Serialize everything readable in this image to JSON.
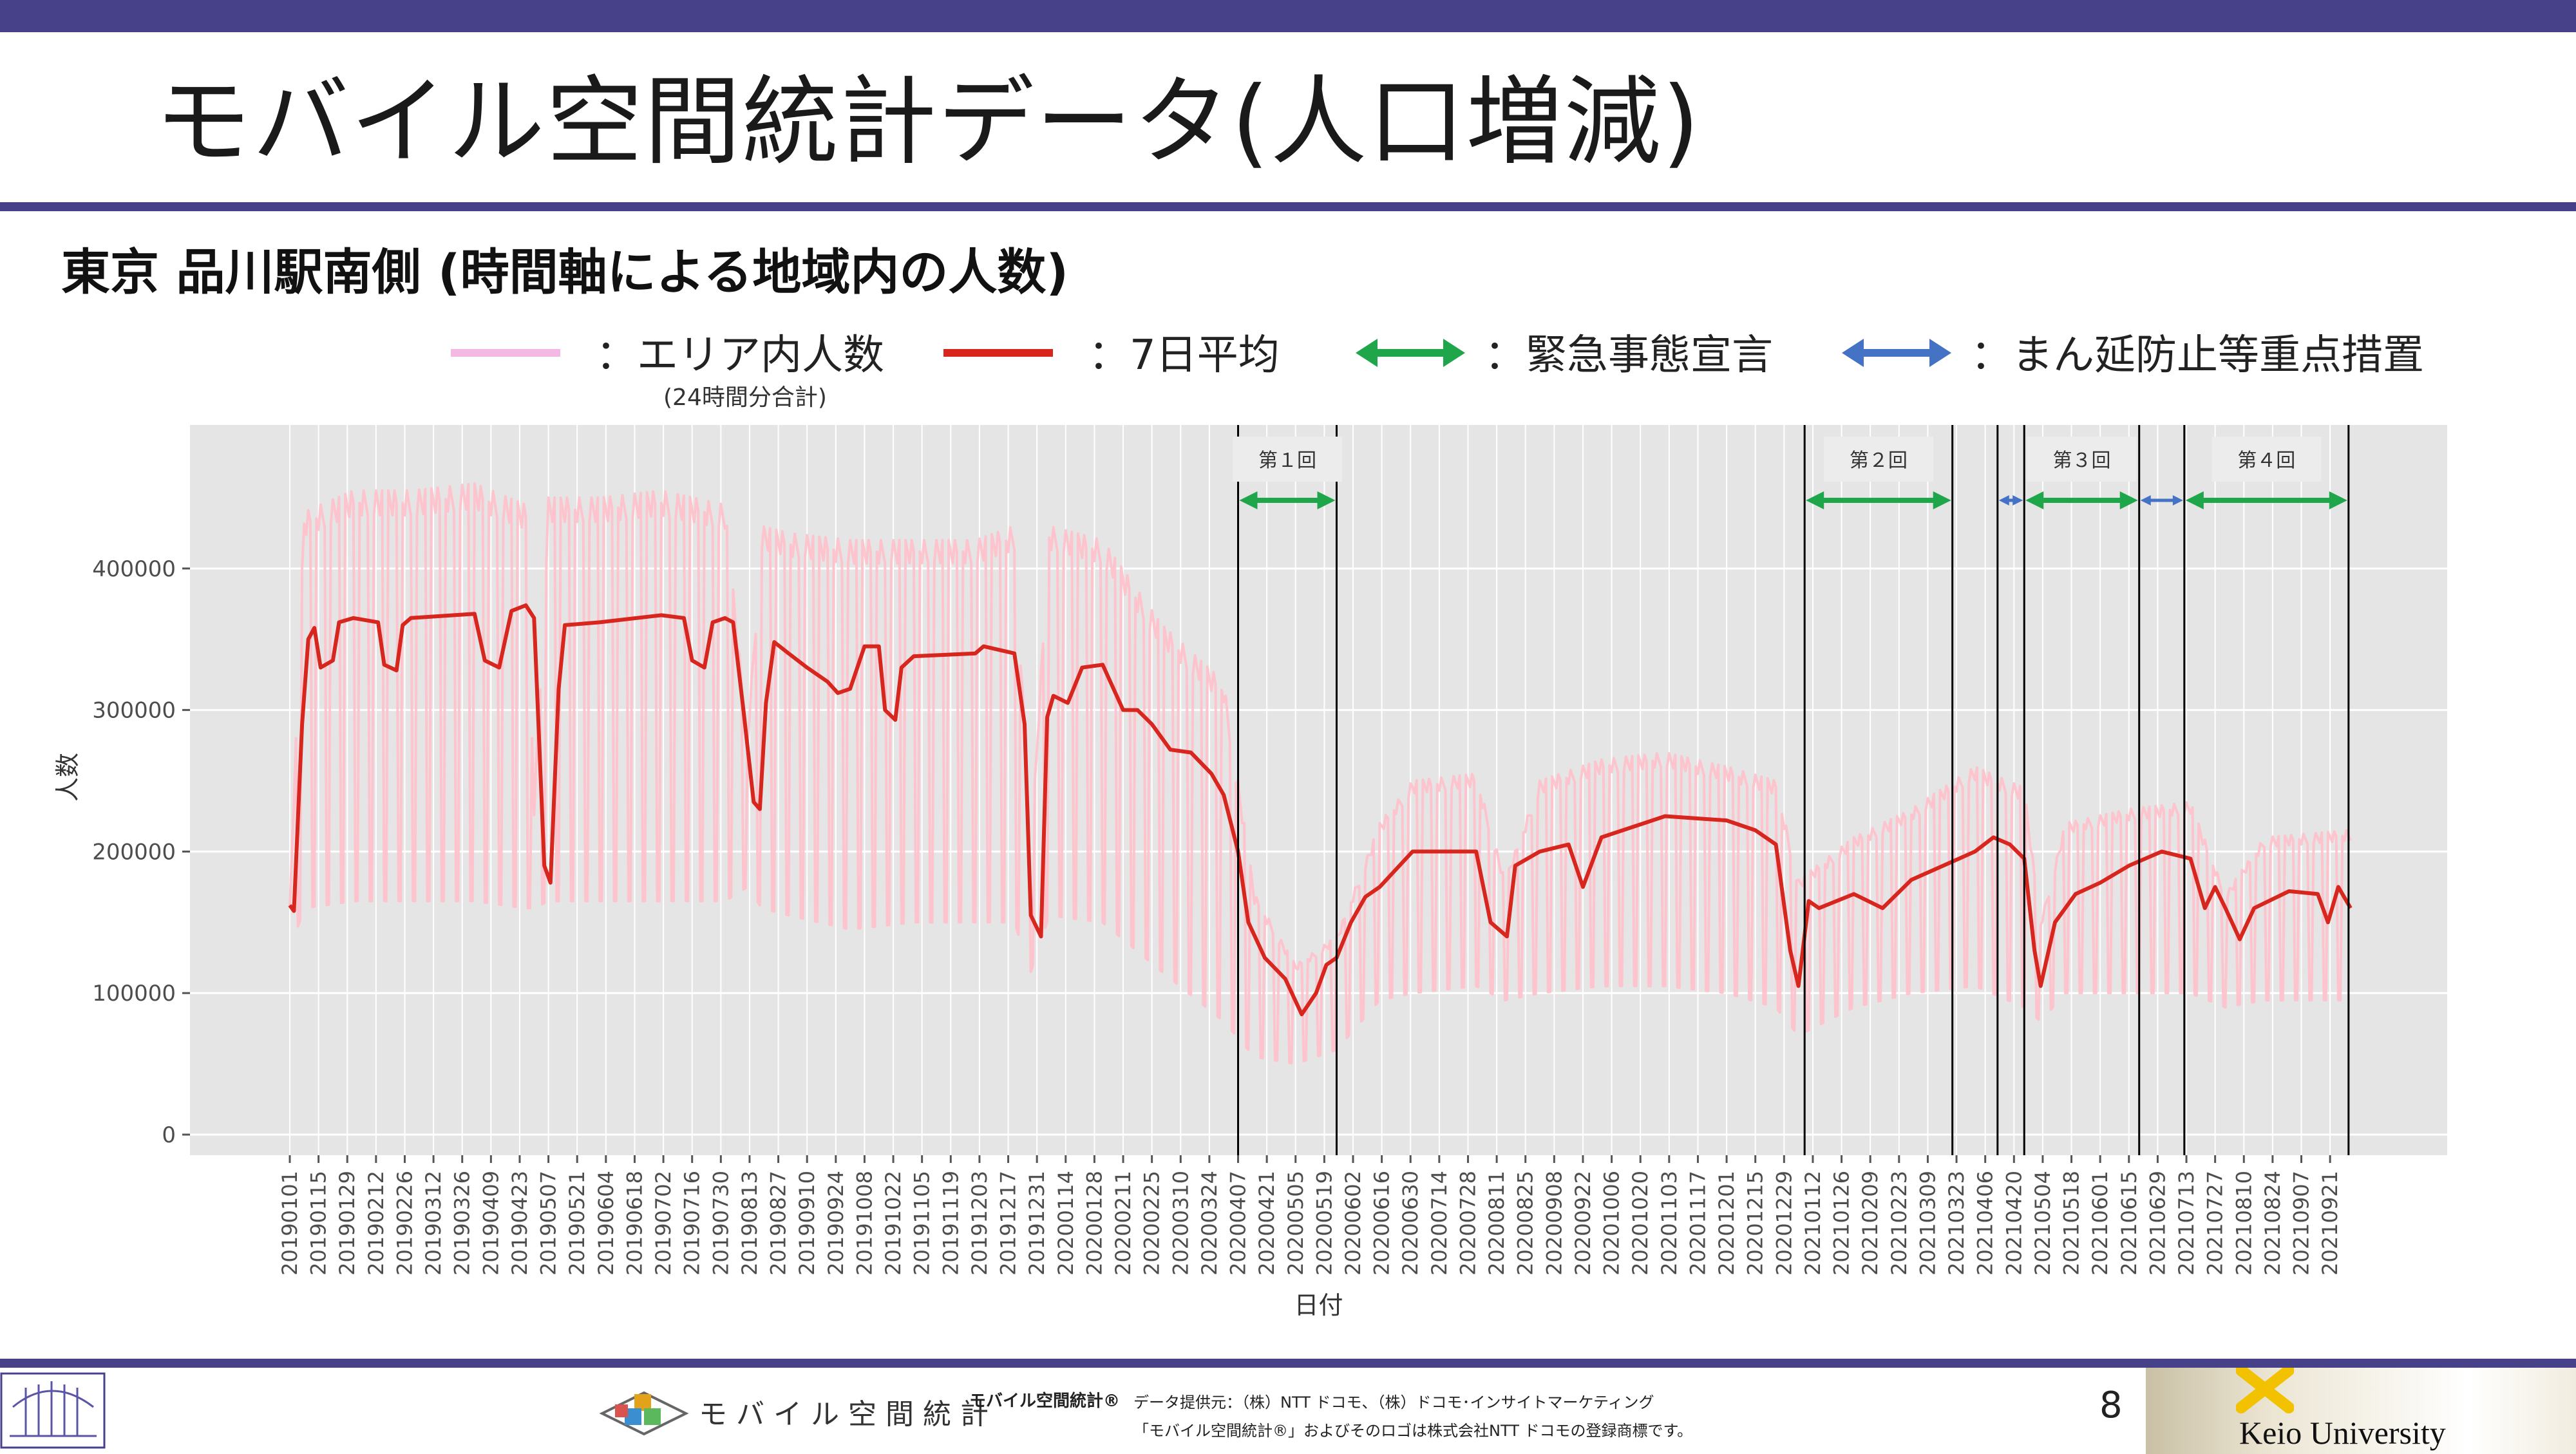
{
  "slide": {
    "title": "モバイル空間統計データ(人口増減)",
    "subtitle": "東京 品川駅南側 (時間軸による地域内の人数)",
    "page_number": "8"
  },
  "legend": {
    "items": [
      {
        "label": "：エリア内人数",
        "color": "#f4b8e4"
      },
      {
        "label": "：7日平均",
        "color": "#d7261e"
      },
      {
        "label": "：緊急事態宣言",
        "color": "#1fa64a"
      },
      {
        "label": "：まん延防止等重点措置",
        "color": "#4472c4"
      }
    ],
    "note": "(24時間分合計)"
  },
  "footer": {
    "brand_left_text": "モバイル空間統計",
    "brand_small": "モバイル空間統計®",
    "provider": "データ提供元：（株）NTT ドコモ、（株）ドコモ･インサイトマーケティング",
    "trademark": "「モバイル空間統計®」およびそのロゴは株式会社NTT ドコモの登録商標です。",
    "university": "Keio University"
  },
  "colors": {
    "band": "#464189",
    "panel": "#e5e5e5",
    "daily": "#ffc0cb",
    "avg": "#d7261e",
    "emergency": "#1fa64a",
    "priority": "#4472c4"
  },
  "chart_data": {
    "type": "line",
    "xlabel": "日付",
    "ylabel": "人数",
    "ylim": [
      0,
      480000
    ],
    "yticks": [
      0,
      100000,
      200000,
      300000,
      400000
    ],
    "ytick_labels": [
      "0",
      "100000",
      "200000",
      "300000",
      "400000"
    ],
    "x_start": "20190101",
    "x_end": "20211001",
    "xtick_labels": [
      "20190101",
      "20190115",
      "20190129",
      "20190212",
      "20190226",
      "20190312",
      "20190326",
      "20190409",
      "20190423",
      "20190507",
      "20190521",
      "20190604",
      "20190618",
      "20190702",
      "20190716",
      "20190730",
      "20190813",
      "20190827",
      "20190910",
      "20190924",
      "20191008",
      "20191022",
      "20191105",
      "20191119",
      "20191203",
      "20191217",
      "20191231",
      "20200114",
      "20200128",
      "20200211",
      "20200225",
      "20200310",
      "20200324",
      "20200407",
      "20200421",
      "20200505",
      "20200519",
      "20200602",
      "20200616",
      "20200630",
      "20200714",
      "20200728",
      "20200811",
      "20200825",
      "20200908",
      "20200922",
      "20201006",
      "20201020",
      "20201103",
      "20201117",
      "20201201",
      "20201215",
      "20201229",
      "20210112",
      "20210126",
      "20210209",
      "20210223",
      "20210309",
      "20210323",
      "20210406",
      "20210420",
      "20210504",
      "20210518",
      "20210601",
      "20210615",
      "20210629",
      "20210713",
      "20210727",
      "20210810",
      "20210824",
      "20210907",
      "20210921"
    ],
    "grid": true,
    "legend_position": "top",
    "series": [
      {
        "name": "エリア内人数",
        "style": "daily-range",
        "points": [
          [
            "20190101",
            130000,
            160000
          ],
          [
            "20190108",
            160000,
            440000
          ],
          [
            "20190201",
            165000,
            455000
          ],
          [
            "20190301",
            165000,
            455000
          ],
          [
            "20190401",
            165000,
            460000
          ],
          [
            "20190426",
            160000,
            445000
          ],
          [
            "20190430",
            160000,
            230000
          ],
          [
            "20190507",
            165000,
            450000
          ],
          [
            "20190601",
            165000,
            450000
          ],
          [
            "20190701",
            165000,
            455000
          ],
          [
            "20190801",
            165000,
            445000
          ],
          [
            "20190812",
            175000,
            280000
          ],
          [
            "20190819",
            160000,
            430000
          ],
          [
            "20190901",
            155000,
            425000
          ],
          [
            "20191001",
            145000,
            420000
          ],
          [
            "20191101",
            150000,
            420000
          ],
          [
            "20191201",
            150000,
            420000
          ],
          [
            "20191220",
            150000,
            430000
          ],
          [
            "20191228",
            115000,
            200000
          ],
          [
            "20200106",
            155000,
            430000
          ],
          [
            "20200201",
            150000,
            420000
          ],
          [
            "20200301",
            115000,
            360000
          ],
          [
            "20200331",
            80000,
            320000
          ],
          [
            "20200415",
            55000,
            170000
          ],
          [
            "20200505",
            50000,
            120000
          ],
          [
            "20200525",
            60000,
            140000
          ],
          [
            "20200615",
            95000,
            220000
          ],
          [
            "20200701",
            100000,
            250000
          ],
          [
            "20200801",
            105000,
            255000
          ],
          [
            "20200815",
            95000,
            180000
          ],
          [
            "20200901",
            100000,
            250000
          ],
          [
            "20201001",
            105000,
            265000
          ],
          [
            "20201101",
            105000,
            270000
          ],
          [
            "20201201",
            100000,
            260000
          ],
          [
            "20201225",
            90000,
            250000
          ],
          [
            "20210105",
            70000,
            180000
          ],
          [
            "20210201",
            90000,
            210000
          ],
          [
            "20210301",
            100000,
            230000
          ],
          [
            "20210401",
            105000,
            260000
          ],
          [
            "20210425",
            90000,
            245000
          ],
          [
            "20210503",
            80000,
            150000
          ],
          [
            "20210515",
            100000,
            220000
          ],
          [
            "20210615",
            100000,
            230000
          ],
          [
            "20210715",
            100000,
            235000
          ],
          [
            "20210801",
            90000,
            170000
          ],
          [
            "20210820",
            95000,
            210000
          ],
          [
            "20210930",
            95000,
            215000
          ]
        ]
      },
      {
        "name": "7日平均",
        "style": "line",
        "points": [
          [
            "20190101",
            162000
          ],
          [
            "20190103",
            158000
          ],
          [
            "20190107",
            290000
          ],
          [
            "20190110",
            350000
          ],
          [
            "20190113",
            358000
          ],
          [
            "20190116",
            330000
          ],
          [
            "20190122",
            335000
          ],
          [
            "20190125",
            362000
          ],
          [
            "20190201",
            365000
          ],
          [
            "20190213",
            362000
          ],
          [
            "20190216",
            332000
          ],
          [
            "20190222",
            328000
          ],
          [
            "20190225",
            360000
          ],
          [
            "20190301",
            365000
          ],
          [
            "20190401",
            368000
          ],
          [
            "20190406",
            335000
          ],
          [
            "20190413",
            330000
          ],
          [
            "20190419",
            370000
          ],
          [
            "20190426",
            374000
          ],
          [
            "20190430",
            365000
          ],
          [
            "20190505",
            190000
          ],
          [
            "20190508",
            178000
          ],
          [
            "20190512",
            315000
          ],
          [
            "20190515",
            360000
          ],
          [
            "20190601",
            362000
          ],
          [
            "20190701",
            367000
          ],
          [
            "20190712",
            365000
          ],
          [
            "20190716",
            335000
          ],
          [
            "20190722",
            330000
          ],
          [
            "20190726",
            362000
          ],
          [
            "20190801",
            365000
          ],
          [
            "20190805",
            362000
          ],
          [
            "20190810",
            300000
          ],
          [
            "20190815",
            235000
          ],
          [
            "20190818",
            230000
          ],
          [
            "20190821",
            305000
          ],
          [
            "20190825",
            348000
          ],
          [
            "20190901",
            340000
          ],
          [
            "20190910",
            330000
          ],
          [
            "20190920",
            320000
          ],
          [
            "20190925",
            312000
          ],
          [
            "20191001",
            315000
          ],
          [
            "20191008",
            345000
          ],
          [
            "20191015",
            345000
          ],
          [
            "20191018",
            300000
          ],
          [
            "20191023",
            293000
          ],
          [
            "20191026",
            330000
          ],
          [
            "20191101",
            338000
          ],
          [
            "20191201",
            340000
          ],
          [
            "20191205",
            345000
          ],
          [
            "20191220",
            340000
          ],
          [
            "20191225",
            290000
          ],
          [
            "20191228",
            155000
          ],
          [
            "20200102",
            140000
          ],
          [
            "20200105",
            295000
          ],
          [
            "20200108",
            310000
          ],
          [
            "20200115",
            305000
          ],
          [
            "20200122",
            330000
          ],
          [
            "20200201",
            332000
          ],
          [
            "20200211",
            300000
          ],
          [
            "20200218",
            300000
          ],
          [
            "20200225",
            290000
          ],
          [
            "20200305",
            272000
          ],
          [
            "20200315",
            270000
          ],
          [
            "20200325",
            255000
          ],
          [
            "20200331",
            240000
          ],
          [
            "20200407",
            200000
          ],
          [
            "20200412",
            150000
          ],
          [
            "20200420",
            125000
          ],
          [
            "20200430",
            110000
          ],
          [
            "20200508",
            85000
          ],
          [
            "20200515",
            100000
          ],
          [
            "20200520",
            120000
          ],
          [
            "20200525",
            125000
          ],
          [
            "20200601",
            150000
          ],
          [
            "20200608",
            168000
          ],
          [
            "20200615",
            175000
          ],
          [
            "20200701",
            200000
          ],
          [
            "20200801",
            200000
          ],
          [
            "20200808",
            150000
          ],
          [
            "20200816",
            140000
          ],
          [
            "20200820",
            190000
          ],
          [
            "20200901",
            200000
          ],
          [
            "20200915",
            205000
          ],
          [
            "20200922",
            175000
          ],
          [
            "20201001",
            210000
          ],
          [
            "20201101",
            225000
          ],
          [
            "20201201",
            222000
          ],
          [
            "20201215",
            215000
          ],
          [
            "20201225",
            205000
          ],
          [
            "20210101",
            130000
          ],
          [
            "20210105",
            105000
          ],
          [
            "20210110",
            165000
          ],
          [
            "20210115",
            160000
          ],
          [
            "20210201",
            170000
          ],
          [
            "20210215",
            160000
          ],
          [
            "20210301",
            180000
          ],
          [
            "20210401",
            200000
          ],
          [
            "20210410",
            210000
          ],
          [
            "20210418",
            205000
          ],
          [
            "20210425",
            195000
          ],
          [
            "20210430",
            130000
          ],
          [
            "20210503",
            105000
          ],
          [
            "20210510",
            150000
          ],
          [
            "20210520",
            170000
          ],
          [
            "20210601",
            178000
          ],
          [
            "20210615",
            190000
          ],
          [
            "20210701",
            200000
          ],
          [
            "20210715",
            195000
          ],
          [
            "20210722",
            160000
          ],
          [
            "20210727",
            175000
          ],
          [
            "20210801",
            160000
          ],
          [
            "20210808",
            138000
          ],
          [
            "20210815",
            160000
          ],
          [
            "20210901",
            172000
          ],
          [
            "20210915",
            170000
          ],
          [
            "20210920",
            150000
          ],
          [
            "20210925",
            175000
          ],
          [
            "20211001",
            160000
          ]
        ]
      }
    ],
    "vlines": [
      "20200407",
      "20200525",
      "20210108",
      "20210321",
      "20210412",
      "20210425",
      "20210620",
      "20210712",
      "20210930"
    ],
    "annotations": [
      {
        "label": "第１回",
        "start": "20200407",
        "end": "20200525",
        "type": "emergency"
      },
      {
        "label": "第２回",
        "start": "20210108",
        "end": "20210321",
        "type": "emergency"
      },
      {
        "label": "",
        "start": "20210412",
        "end": "20210425",
        "type": "priority"
      },
      {
        "label": "第３回",
        "start": "20210425",
        "end": "20210620",
        "type": "emergency"
      },
      {
        "label": "",
        "start": "20210620",
        "end": "20210712",
        "type": "priority"
      },
      {
        "label": "第４回",
        "start": "20210712",
        "end": "20210930",
        "type": "emergency"
      }
    ]
  }
}
